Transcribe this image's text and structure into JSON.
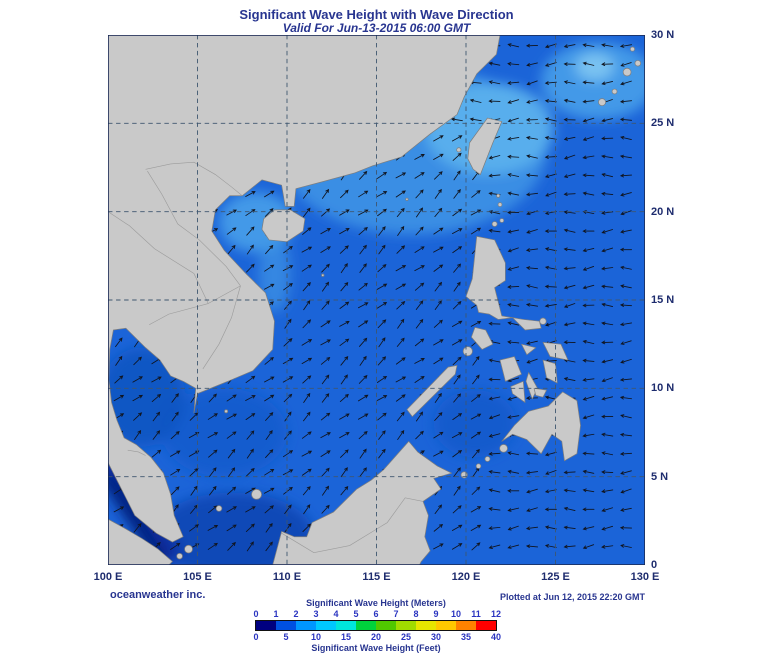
{
  "header": {
    "title": "Significant Wave Height with Wave Direction",
    "subtitle": "Valid For Jun-13-2015 06:00 GMT"
  },
  "map": {
    "lon_ticks": [
      "100 E",
      "105 E",
      "110 E",
      "115 E",
      "120 E",
      "125 E",
      "130 E"
    ],
    "lat_ticks": [
      "30 N",
      "25 N",
      "20 N",
      "15 N",
      "10 N",
      "5 N",
      "0"
    ]
  },
  "footer": {
    "credit": "oceanweather inc.",
    "plotted": "Plotted at Jun 12, 2015 22:20 GMT"
  },
  "legend": {
    "meters_label": "Significant Wave Height (Meters)",
    "feet_label": "Significant Wave Height (Feet)",
    "meters_ticks": [
      "0",
      "1",
      "2",
      "3",
      "4",
      "5",
      "6",
      "7",
      "8",
      "9",
      "10",
      "11",
      "12"
    ],
    "feet_ticks": [
      "0",
      "5",
      "10",
      "15",
      "20",
      "25",
      "30",
      "35",
      "40"
    ],
    "colors": [
      "#000080",
      "#0050e1",
      "#0096ff",
      "#00c8ff",
      "#00e6dc",
      "#00d23c",
      "#50c800",
      "#a0dc00",
      "#e6e600",
      "#ffc800",
      "#ff8200",
      "#ff0000"
    ]
  },
  "chart_data": {
    "type": "heatmap",
    "title": "Significant Wave Height with Wave Direction",
    "valid_time": "Jun-13-2015 06:00 GMT",
    "lon_range_deg_e": [
      100,
      130
    ],
    "lat_range_deg_n": [
      0,
      30
    ],
    "grid_interval_deg": 5,
    "colorbar_meters": [
      0,
      1,
      2,
      3,
      4,
      5,
      6,
      7,
      8,
      9,
      10,
      11,
      12
    ],
    "colorbar_feet": [
      0,
      5,
      10,
      15,
      20,
      25,
      30,
      35,
      40
    ]
  }
}
